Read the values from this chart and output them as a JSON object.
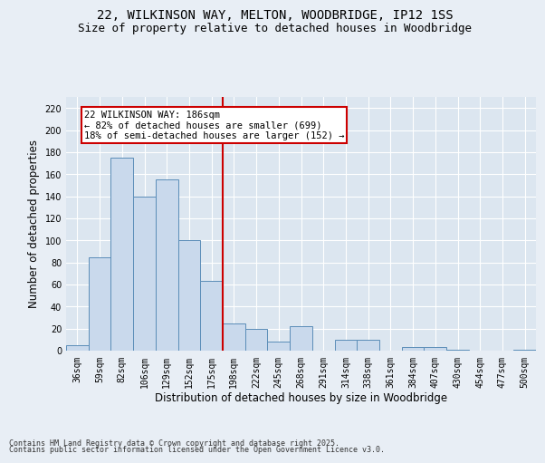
{
  "title_line1": "22, WILKINSON WAY, MELTON, WOODBRIDGE, IP12 1SS",
  "title_line2": "Size of property relative to detached houses in Woodbridge",
  "xlabel": "Distribution of detached houses by size in Woodbridge",
  "ylabel": "Number of detached properties",
  "footer_line1": "Contains HM Land Registry data © Crown copyright and database right 2025.",
  "footer_line2": "Contains public sector information licensed under the Open Government Licence v3.0.",
  "categories": [
    "36sqm",
    "59sqm",
    "82sqm",
    "106sqm",
    "129sqm",
    "152sqm",
    "175sqm",
    "198sqm",
    "222sqm",
    "245sqm",
    "268sqm",
    "291sqm",
    "314sqm",
    "338sqm",
    "361sqm",
    "384sqm",
    "407sqm",
    "430sqm",
    "454sqm",
    "477sqm",
    "500sqm"
  ],
  "values": [
    5,
    85,
    175,
    140,
    155,
    100,
    63,
    25,
    20,
    8,
    22,
    0,
    10,
    10,
    0,
    3,
    3,
    1,
    0,
    0,
    1
  ],
  "bar_color": "#c9d9ec",
  "bar_edge_color": "#5b8db8",
  "reference_line_color": "#cc0000",
  "annotation_text": "22 WILKINSON WAY: 186sqm\n← 82% of detached houses are smaller (699)\n18% of semi-detached houses are larger (152) →",
  "annotation_box_color": "#cc0000",
  "annotation_box_fill": "#ffffff",
  "ylim": [
    0,
    230
  ],
  "yticks": [
    0,
    20,
    40,
    60,
    80,
    100,
    120,
    140,
    160,
    180,
    200,
    220
  ],
  "background_color": "#e8eef5",
  "plot_bg_color": "#dce6f0",
  "grid_color": "#ffffff",
  "title_fontsize": 10,
  "subtitle_fontsize": 9,
  "axis_label_fontsize": 8.5,
  "tick_fontsize": 7,
  "footer_fontsize": 6,
  "annotation_fontsize": 7.5
}
